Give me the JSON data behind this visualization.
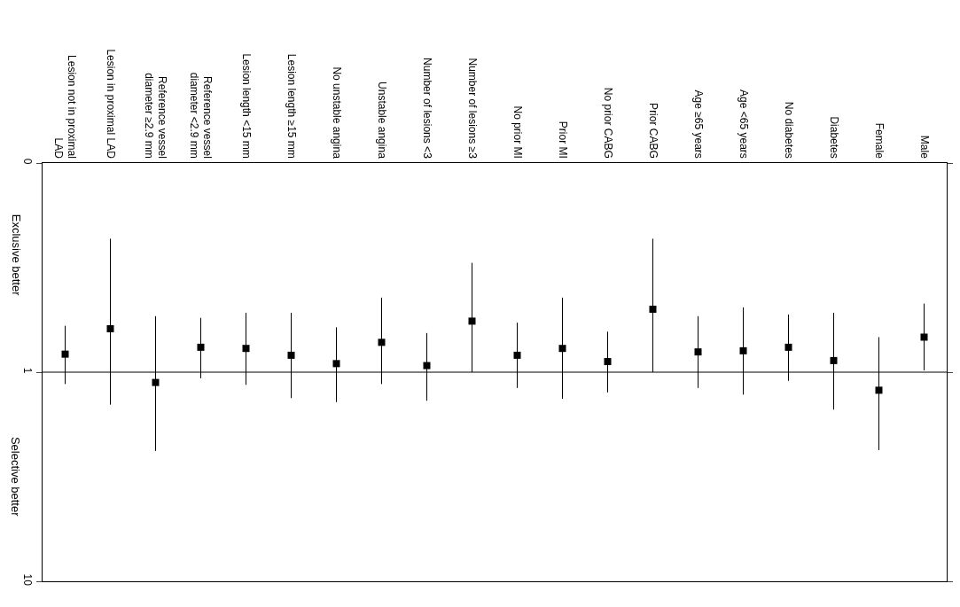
{
  "chart_data": {
    "type": "scatter",
    "categories": [
      "Lesion not in proximal LAD",
      "Lesion in proximal LAD",
      "Reference vessel diameter ≥2.9 mm",
      "Reference vessel diameter <2.9 mm",
      "Lesion length <15 mm",
      "Lesion length ≥15 mm",
      "No unstable angina",
      "Unstable angina",
      "Number of lesions <3",
      "Number of lesions ≥3",
      "No prior MI",
      "Prior MI",
      "No prior CABG",
      "Prior CABG",
      "Age ≥65 years",
      "Age <65 years",
      "No diabetes",
      "Diabetes",
      "Female",
      "Male"
    ],
    "values": [
      0.82,
      0.62,
      1.12,
      0.76,
      0.77,
      0.83,
      0.91,
      0.72,
      0.93,
      0.57,
      0.83,
      0.77,
      0.89,
      0.5,
      0.8,
      0.79,
      0.76,
      0.88,
      1.22,
      0.68
    ],
    "errors": [
      [
        0.6,
        1.14
      ],
      [
        0.23,
        1.43
      ],
      [
        0.54,
        2.38
      ],
      [
        0.55,
        1.07
      ],
      [
        0.52,
        1.15
      ],
      [
        0.52,
        1.33
      ],
      [
        0.61,
        1.39
      ],
      [
        0.44,
        1.14
      ],
      [
        0.65,
        1.37
      ],
      [
        0.3,
        1.0
      ],
      [
        0.58,
        1.19
      ],
      [
        0.44,
        1.34
      ],
      [
        0.64,
        1.25
      ],
      [
        0.23,
        1.0
      ],
      [
        0.54,
        1.19
      ],
      [
        0.49,
        1.28
      ],
      [
        0.53,
        1.1
      ],
      [
        0.52,
        1.51
      ],
      [
        0.68,
        2.36
      ],
      [
        0.47,
        0.98
      ]
    ],
    "color": "#000000",
    "marker": "square",
    "log": true,
    "ylim": [
      10,
      0.1
    ],
    "yticks": [
      {
        "value": 0.1,
        "label": "0"
      },
      1,
      10
    ],
    "grid": false,
    "legend": false,
    "ref_lines": [
      {
        "axis": "y",
        "value": 1
      }
    ],
    "annotations": [
      "Exclusive better",
      "Selective better"
    ]
  }
}
